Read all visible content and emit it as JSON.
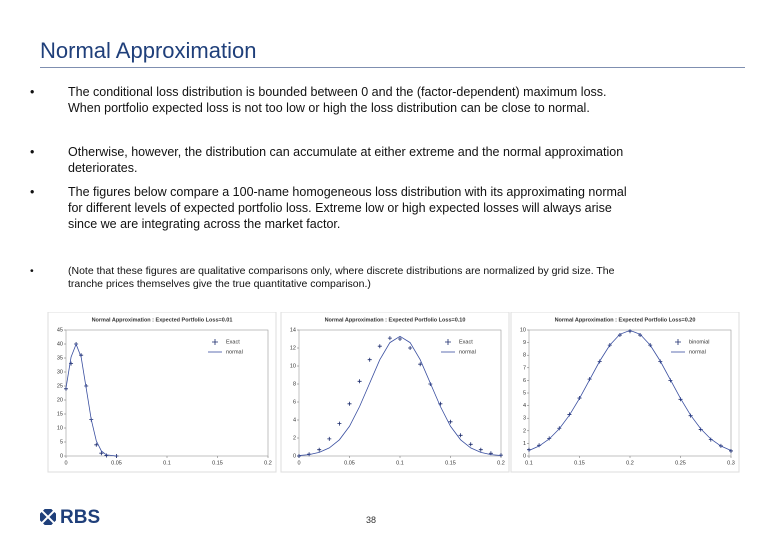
{
  "header": {
    "title": "Normal Approximation"
  },
  "bullets": [
    {
      "marker": "•",
      "text": "The conditional loss distribution is bounded between 0 and the (factor-dependent) maximum loss. When portfolio expected loss is not too low or high the loss distribution can be close to normal."
    },
    {
      "marker": "•",
      "text": "Otherwise, however, the distribution can accumulate at either extreme and the normal approximation deteriorates."
    },
    {
      "marker": "•",
      "text": "The figures below compare a 100-name homogeneous loss distribution with its approximating normal for different levels of expected portfolio loss. Extreme low or high expected losses will always arise since we are integrating across the market factor."
    },
    {
      "marker": "•",
      "text": "(Note that these figures are qualitative comparisons only, where discrete distributions are normalized by grid size. The tranche prices themselves give the true quantitative comparison.)"
    }
  ],
  "chart_data": [
    {
      "type": "line",
      "title": "Normal Approximation : Expected Portfolio Loss=0.01",
      "x": [
        0,
        0.005,
        0.01,
        0.015,
        0.02,
        0.025,
        0.03,
        0.035,
        0.04,
        0.05
      ],
      "series": [
        {
          "name": "Exact",
          "color": "#1a2a6c",
          "style": "markers",
          "values": [
            24,
            33,
            40,
            36,
            25,
            13,
            4,
            1,
            0.2,
            0
          ]
        },
        {
          "name": "normal",
          "color": "#3a4fa0",
          "style": "line",
          "values": [
            24.3,
            35.3,
            39.9,
            35.3,
            24.2,
            13.0,
            5.4,
            1.8,
            0.4,
            0
          ]
        }
      ],
      "xlim": [
        0,
        0.2
      ],
      "xticks": [
        0,
        0.05,
        0.1,
        0.15,
        0.2
      ],
      "ylim": [
        0,
        45
      ],
      "yticks": [
        0,
        5,
        10,
        15,
        20,
        25,
        30,
        35,
        40,
        45
      ]
    },
    {
      "type": "line",
      "title": "Normal Approximation : Expected Portfolio Loss=0.10",
      "x": [
        0,
        0.01,
        0.02,
        0.03,
        0.04,
        0.05,
        0.06,
        0.07,
        0.08,
        0.09,
        0.1,
        0.11,
        0.12,
        0.13,
        0.14,
        0.15,
        0.16,
        0.17,
        0.18,
        0.19,
        0.2
      ],
      "series": [
        {
          "name": "Exact",
          "color": "#1a2a6c",
          "style": "markers",
          "values": [
            0,
            0.2,
            0.7,
            1.9,
            3.6,
            5.8,
            8.3,
            10.7,
            12.2,
            13.1,
            13.0,
            12.0,
            10.2,
            8.0,
            5.8,
            3.8,
            2.3,
            1.3,
            0.7,
            0.3,
            0.1
          ]
        },
        {
          "name": "normal",
          "color": "#3a4fa0",
          "style": "line",
          "values": [
            0.05,
            0.15,
            0.4,
            0.9,
            1.8,
            3.3,
            5.5,
            8.1,
            10.7,
            12.6,
            13.3,
            12.6,
            10.7,
            8.1,
            5.5,
            3.3,
            1.8,
            0.9,
            0.4,
            0.15,
            0.05
          ]
        }
      ],
      "xlim": [
        0,
        0.2
      ],
      "xticks": [
        0,
        0.05,
        0.1,
        0.15,
        0.2
      ],
      "ylim": [
        0,
        14
      ],
      "yticks": [
        0,
        2,
        4,
        6,
        8,
        10,
        12,
        14
      ]
    },
    {
      "type": "line",
      "title": "Normal Approximation : Expected Portfolio Loss=0.20",
      "x": [
        0.1,
        0.11,
        0.12,
        0.13,
        0.14,
        0.15,
        0.16,
        0.17,
        0.18,
        0.19,
        0.2,
        0.21,
        0.22,
        0.23,
        0.24,
        0.25,
        0.26,
        0.27,
        0.28,
        0.29,
        0.3
      ],
      "series": [
        {
          "name": "binomial",
          "color": "#1a2a6c",
          "style": "markers",
          "values": [
            0.5,
            0.85,
            1.4,
            2.2,
            3.3,
            4.6,
            6.1,
            7.5,
            8.8,
            9.6,
            9.9,
            9.6,
            8.8,
            7.5,
            6.0,
            4.5,
            3.2,
            2.1,
            1.3,
            0.8,
            0.4
          ]
        },
        {
          "name": "normal",
          "color": "#3a4fa0",
          "style": "line",
          "values": [
            0.44,
            0.79,
            1.35,
            2.16,
            3.24,
            4.57,
            6.05,
            7.53,
            8.8,
            9.66,
            9.97,
            9.66,
            8.8,
            7.53,
            6.05,
            4.57,
            3.24,
            2.16,
            1.35,
            0.79,
            0.44
          ]
        }
      ],
      "xlim": [
        0.1,
        0.3
      ],
      "xticks": [
        0.1,
        0.15,
        0.2,
        0.25,
        0.3
      ],
      "ylim": [
        0,
        10
      ],
      "yticks": [
        0,
        1,
        2,
        3,
        4,
        5,
        6,
        7,
        8,
        9,
        10
      ]
    }
  ],
  "footer": {
    "logo": "RBS",
    "page": "38"
  }
}
